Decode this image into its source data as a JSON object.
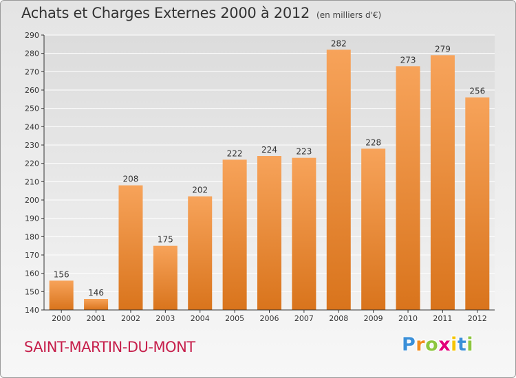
{
  "header": {
    "title": "Achats et Charges Externes 2000 à 2012",
    "unit": "(en milliers d'€)"
  },
  "footer": {
    "commune": "SAINT-MARTIN-DU-MONT",
    "logo": {
      "letters": [
        {
          "char": "P",
          "color": "#3a8fd8"
        },
        {
          "char": "r",
          "color": "#f28c1e"
        },
        {
          "char": "o",
          "color": "#8dc63f"
        },
        {
          "char": "x",
          "color": "#e2007a"
        },
        {
          "char": "i",
          "color": "#f5c400"
        },
        {
          "char": "t",
          "color": "#3a8fd8"
        },
        {
          "char": "i",
          "color": "#8dc63f"
        }
      ]
    }
  },
  "chart_data": {
    "type": "bar",
    "title": "Achats et Charges Externes 2000 à 2012",
    "subtitle": "(en milliers d'€)",
    "categories": [
      "2000",
      "2001",
      "2002",
      "2003",
      "2004",
      "2005",
      "2006",
      "2007",
      "2008",
      "2009",
      "2010",
      "2011",
      "2012"
    ],
    "values": [
      156,
      146,
      208,
      175,
      202,
      222,
      224,
      223,
      282,
      228,
      273,
      279,
      256
    ],
    "ylim": [
      140,
      290
    ],
    "yticks": [
      140,
      150,
      160,
      170,
      180,
      190,
      200,
      210,
      220,
      230,
      240,
      250,
      260,
      270,
      280,
      290
    ],
    "grid": true,
    "colors": {
      "bar_top": "#f7a35a",
      "bar_bottom": "#d9741c",
      "grid": "#ffffff",
      "axis": "#333333"
    }
  }
}
